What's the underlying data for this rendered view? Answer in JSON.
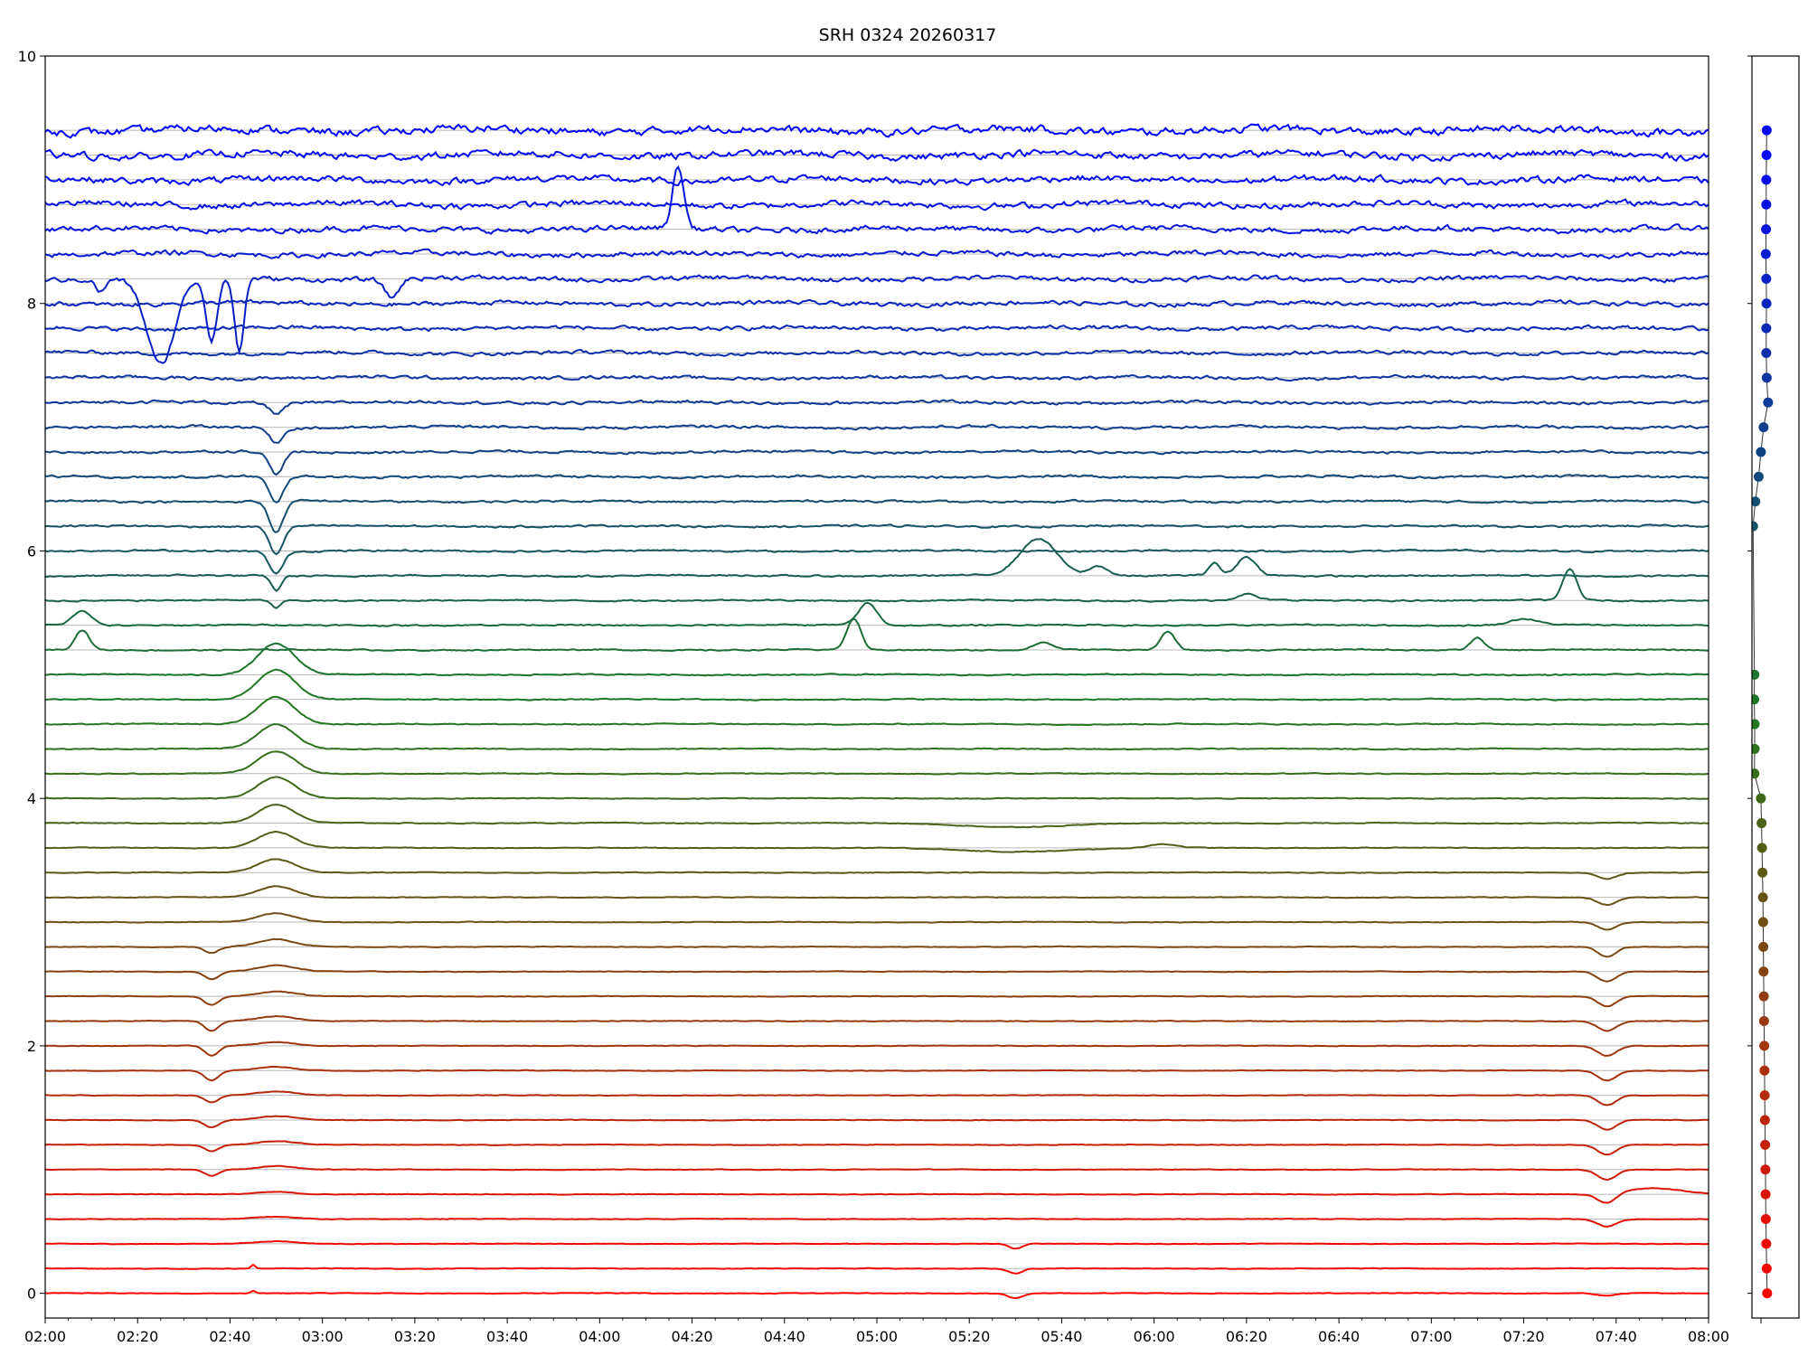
{
  "chart_data": [
    {
      "type": "line",
      "title": "SRH 0324 20260317",
      "xlabel": "",
      "ylabel": "",
      "x_range": [
        "02:00",
        "08:00"
      ],
      "ylim": [
        -0.2,
        10
      ],
      "x_ticks": [
        "02:00",
        "02:20",
        "02:40",
        "03:00",
        "03:20",
        "03:40",
        "04:00",
        "04:20",
        "04:40",
        "05:00",
        "05:20",
        "05:40",
        "06:00",
        "06:20",
        "06:40",
        "07:00",
        "07:20",
        "07:40",
        "08:00"
      ],
      "y_ticks": [
        0,
        2,
        4,
        6,
        8,
        10
      ],
      "grid": "horizontal lines at each channel baseline",
      "color_gradient": {
        "bottom": "#ff0000",
        "middle": "#1f7a1f",
        "top": "#0000ff"
      },
      "series": [
        {
          "baseline": 0.0,
          "events": [
            {
              "t": "02:45",
              "a": 0.02,
              "w": 0.5
            },
            {
              "t": "05:30",
              "a": -0.04,
              "w": 1.5
            },
            {
              "t": "07:38",
              "a": -0.02,
              "w": 2
            }
          ]
        },
        {
          "baseline": 0.2,
          "events": [
            {
              "t": "02:45",
              "a": 0.03,
              "w": 0.4
            },
            {
              "t": "05:30",
              "a": -0.04,
              "w": 1.5
            }
          ]
        },
        {
          "baseline": 0.4,
          "events": [
            {
              "t": "02:50",
              "a": 0.02,
              "w": 4
            },
            {
              "t": "05:30",
              "a": -0.04,
              "w": 1.5
            }
          ]
        },
        {
          "baseline": 0.6,
          "events": [
            {
              "t": "02:50",
              "a": 0.02,
              "w": 4
            },
            {
              "t": "07:38",
              "a": -0.06,
              "w": 2
            }
          ]
        },
        {
          "baseline": 0.8,
          "events": [
            {
              "t": "02:50",
              "a": 0.02,
              "w": 4
            },
            {
              "t": "07:38",
              "a": -0.08,
              "w": 2
            },
            {
              "t": "07:48",
              "a": 0.05,
              "w": 6
            }
          ]
        },
        {
          "baseline": 1.0,
          "events": [
            {
              "t": "02:36",
              "a": -0.05,
              "w": 1.5
            },
            {
              "t": "02:50",
              "a": 0.03,
              "w": 4
            },
            {
              "t": "07:38",
              "a": -0.08,
              "w": 2
            }
          ]
        },
        {
          "baseline": 1.2,
          "events": [
            {
              "t": "02:36",
              "a": -0.05,
              "w": 1.5
            },
            {
              "t": "02:50",
              "a": 0.03,
              "w": 4
            },
            {
              "t": "07:38",
              "a": -0.08,
              "w": 2
            }
          ]
        },
        {
          "baseline": 1.4,
          "events": [
            {
              "t": "02:36",
              "a": -0.06,
              "w": 1.5
            },
            {
              "t": "02:50",
              "a": 0.03,
              "w": 4
            },
            {
              "t": "07:38",
              "a": -0.08,
              "w": 2
            }
          ]
        },
        {
          "baseline": 1.6,
          "events": [
            {
              "t": "02:36",
              "a": -0.06,
              "w": 1.5
            },
            {
              "t": "02:50",
              "a": 0.03,
              "w": 4
            },
            {
              "t": "07:38",
              "a": -0.08,
              "w": 2
            }
          ]
        },
        {
          "baseline": 1.8,
          "events": [
            {
              "t": "02:36",
              "a": -0.08,
              "w": 1.5
            },
            {
              "t": "02:50",
              "a": 0.03,
              "w": 4
            },
            {
              "t": "07:38",
              "a": -0.08,
              "w": 2
            }
          ]
        },
        {
          "baseline": 2.0,
          "events": [
            {
              "t": "02:36",
              "a": -0.08,
              "w": 1.5
            },
            {
              "t": "02:50",
              "a": 0.03,
              "w": 4
            },
            {
              "t": "07:38",
              "a": -0.08,
              "w": 2
            }
          ]
        },
        {
          "baseline": 2.2,
          "events": [
            {
              "t": "02:36",
              "a": -0.08,
              "w": 1.5
            },
            {
              "t": "02:50",
              "a": 0.04,
              "w": 4
            },
            {
              "t": "07:38",
              "a": -0.08,
              "w": 2
            }
          ]
        },
        {
          "baseline": 2.4,
          "events": [
            {
              "t": "02:36",
              "a": -0.07,
              "w": 1.5
            },
            {
              "t": "02:50",
              "a": 0.04,
              "w": 4
            },
            {
              "t": "07:38",
              "a": -0.08,
              "w": 2
            }
          ]
        },
        {
          "baseline": 2.6,
          "events": [
            {
              "t": "02:36",
              "a": -0.06,
              "w": 1.5
            },
            {
              "t": "02:50",
              "a": 0.05,
              "w": 4
            },
            {
              "t": "07:38",
              "a": -0.08,
              "w": 2
            }
          ]
        },
        {
          "baseline": 2.8,
          "events": [
            {
              "t": "02:36",
              "a": -0.05,
              "w": 1.5
            },
            {
              "t": "02:50",
              "a": 0.06,
              "w": 4
            },
            {
              "t": "07:38",
              "a": -0.08,
              "w": 2
            }
          ]
        },
        {
          "baseline": 3.0,
          "events": [
            {
              "t": "02:50",
              "a": 0.07,
              "w": 4
            },
            {
              "t": "07:38",
              "a": -0.06,
              "w": 2
            }
          ]
        },
        {
          "baseline": 3.2,
          "events": [
            {
              "t": "02:50",
              "a": 0.09,
              "w": 4
            },
            {
              "t": "07:38",
              "a": -0.06,
              "w": 2
            }
          ]
        },
        {
          "baseline": 3.4,
          "events": [
            {
              "t": "02:50",
              "a": 0.11,
              "w": 4
            },
            {
              "t": "07:38",
              "a": -0.05,
              "w": 2
            }
          ]
        },
        {
          "baseline": 3.6,
          "events": [
            {
              "t": "02:50",
              "a": 0.13,
              "w": 4
            },
            {
              "t": "05:30",
              "a": -0.03,
              "w": 12
            },
            {
              "t": "06:02",
              "a": 0.03,
              "w": 3
            }
          ]
        },
        {
          "baseline": 3.8,
          "events": [
            {
              "t": "02:50",
              "a": 0.15,
              "w": 4
            },
            {
              "t": "05:30",
              "a": -0.03,
              "w": 12
            }
          ]
        },
        {
          "baseline": 4.0,
          "events": [
            {
              "t": "02:50",
              "a": 0.17,
              "w": 4
            }
          ]
        },
        {
          "baseline": 4.2,
          "events": [
            {
              "t": "02:50",
              "a": 0.18,
              "w": 4
            }
          ]
        },
        {
          "baseline": 4.4,
          "events": [
            {
              "t": "02:50",
              "a": 0.2,
              "w": 4
            }
          ]
        },
        {
          "baseline": 4.6,
          "events": [
            {
              "t": "02:50",
              "a": 0.22,
              "w": 4
            }
          ]
        },
        {
          "baseline": 4.8,
          "events": [
            {
              "t": "02:50",
              "a": 0.24,
              "w": 4
            }
          ]
        },
        {
          "baseline": 5.0,
          "events": [
            {
              "t": "02:50",
              "a": 0.25,
              "w": 4
            }
          ]
        },
        {
          "baseline": 5.2,
          "events": [
            {
              "t": "02:08",
              "a": 0.16,
              "w": 1.5
            },
            {
              "t": "04:55",
              "a": 0.25,
              "w": 1.5
            },
            {
              "t": "05:36",
              "a": 0.06,
              "w": 2
            },
            {
              "t": "06:03",
              "a": 0.15,
              "w": 1.5
            },
            {
              "t": "07:10",
              "a": 0.1,
              "w": 1.5
            }
          ]
        },
        {
          "baseline": 5.4,
          "events": [
            {
              "t": "02:08",
              "a": 0.12,
              "w": 2
            },
            {
              "t": "04:58",
              "a": 0.18,
              "w": 2
            },
            {
              "t": "07:20",
              "a": 0.05,
              "w": 3
            }
          ]
        },
        {
          "baseline": 5.6,
          "events": [
            {
              "t": "02:50",
              "a": -0.06,
              "w": 1
            },
            {
              "t": "06:20",
              "a": 0.05,
              "w": 2
            },
            {
              "t": "07:30",
              "a": 0.25,
              "w": 1.5
            }
          ]
        },
        {
          "baseline": 5.8,
          "events": [
            {
              "t": "02:50",
              "a": -0.12,
              "w": 1
            },
            {
              "t": "05:35",
              "a": 0.3,
              "w": 4
            },
            {
              "t": "05:48",
              "a": 0.08,
              "w": 2
            },
            {
              "t": "06:13",
              "a": 0.1,
              "w": 1.2
            },
            {
              "t": "06:20",
              "a": 0.15,
              "w": 2
            }
          ]
        },
        {
          "baseline": 6.0,
          "events": [
            {
              "t": "02:50",
              "a": -0.18,
              "w": 1.5
            }
          ]
        },
        {
          "baseline": 6.2,
          "events": [
            {
              "t": "02:50",
              "a": -0.22,
              "w": 1.5
            }
          ]
        },
        {
          "baseline": 6.4,
          "events": [
            {
              "t": "02:50",
              "a": -0.25,
              "w": 1.5
            }
          ]
        },
        {
          "baseline": 6.6,
          "events": [
            {
              "t": "02:50",
              "a": -0.22,
              "w": 1.5
            }
          ]
        },
        {
          "baseline": 6.8,
          "events": [
            {
              "t": "02:50",
              "a": -0.18,
              "w": 1.5
            }
          ]
        },
        {
          "baseline": 7.0,
          "events": [
            {
              "t": "02:50",
              "a": -0.12,
              "w": 1.5
            }
          ]
        },
        {
          "baseline": 7.2,
          "events": [
            {
              "t": "02:50",
              "a": -0.08,
              "w": 1.5
            }
          ]
        },
        {
          "baseline": 7.4,
          "events": []
        },
        {
          "baseline": 7.6,
          "events": []
        },
        {
          "baseline": 7.8,
          "events": []
        },
        {
          "baseline": 8.0,
          "events": []
        },
        {
          "baseline": 8.2,
          "events": [
            {
              "t": "02:12",
              "a": -0.1,
              "w": 1
            },
            {
              "t": "02:25",
              "a": -0.7,
              "w": 3
            },
            {
              "t": "02:36",
              "a": -0.5,
              "w": 1.2
            },
            {
              "t": "02:42",
              "a": -0.6,
              "w": 1
            },
            {
              "t": "03:15",
              "a": -0.15,
              "w": 1.5
            }
          ]
        },
        {
          "baseline": 8.4,
          "events": []
        },
        {
          "baseline": 8.6,
          "events": [
            {
              "t": "04:17",
              "a": 0.5,
              "w": 1.2
            }
          ]
        },
        {
          "baseline": 8.8,
          "events": []
        },
        {
          "baseline": 9.0,
          "events": []
        },
        {
          "baseline": 9.2,
          "events": []
        },
        {
          "baseline": 9.4,
          "events": []
        }
      ]
    },
    {
      "type": "scatter",
      "title": "",
      "xlabel": "",
      "ylabel": "",
      "connected_line": true,
      "ylim": [
        -0.2,
        10
      ],
      "points": [
        {
          "x": 0.58,
          "y": 0.0
        },
        {
          "x": 0.56,
          "y": 0.2
        },
        {
          "x": 0.54,
          "y": 0.4
        },
        {
          "x": 0.52,
          "y": 0.6
        },
        {
          "x": 0.51,
          "y": 0.8
        },
        {
          "x": 0.5,
          "y": 1.0
        },
        {
          "x": 0.49,
          "y": 1.2
        },
        {
          "x": 0.48,
          "y": 1.4
        },
        {
          "x": 0.47,
          "y": 1.6
        },
        {
          "x": 0.46,
          "y": 1.8
        },
        {
          "x": 0.45,
          "y": 2.0
        },
        {
          "x": 0.44,
          "y": 2.2
        },
        {
          "x": 0.43,
          "y": 2.4
        },
        {
          "x": 0.42,
          "y": 2.6
        },
        {
          "x": 0.41,
          "y": 2.8
        },
        {
          "x": 0.4,
          "y": 3.0
        },
        {
          "x": 0.39,
          "y": 3.2
        },
        {
          "x": 0.37,
          "y": 3.4
        },
        {
          "x": 0.35,
          "y": 3.6
        },
        {
          "x": 0.33,
          "y": 3.8
        },
        {
          "x": 0.3,
          "y": 4.0
        },
        {
          "x": 0.01,
          "y": 4.2
        },
        {
          "x": 0.02,
          "y": 4.4
        },
        {
          "x": 0.02,
          "y": 4.6
        },
        {
          "x": 0.0,
          "y": 4.8
        },
        {
          "x": 0.01,
          "y": 5.0
        },
        {
          "x": -0.05,
          "y": 6.2
        },
        {
          "x": 0.05,
          "y": 6.4
        },
        {
          "x": 0.2,
          "y": 6.6
        },
        {
          "x": 0.3,
          "y": 6.8
        },
        {
          "x": 0.42,
          "y": 7.0
        },
        {
          "x": 0.62,
          "y": 7.2
        },
        {
          "x": 0.56,
          "y": 7.4
        },
        {
          "x": 0.54,
          "y": 7.6
        },
        {
          "x": 0.54,
          "y": 7.8
        },
        {
          "x": 0.55,
          "y": 8.0
        },
        {
          "x": 0.54,
          "y": 8.2
        },
        {
          "x": 0.52,
          "y": 8.4
        },
        {
          "x": 0.53,
          "y": 8.6
        },
        {
          "x": 0.54,
          "y": 8.8
        },
        {
          "x": 0.54,
          "y": 9.0
        },
        {
          "x": 0.55,
          "y": 9.2
        },
        {
          "x": 0.56,
          "y": 9.4
        }
      ]
    }
  ]
}
